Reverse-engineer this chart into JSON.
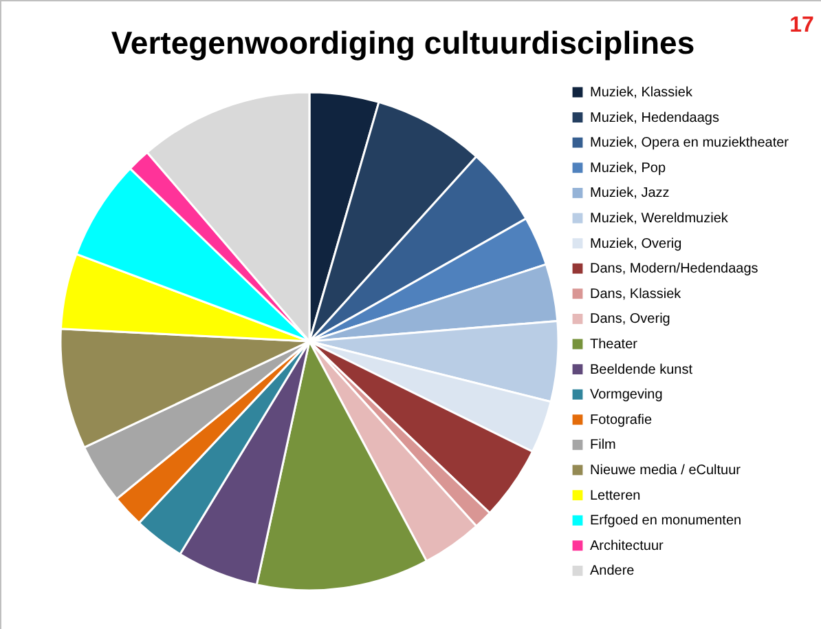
{
  "chart_data": {
    "type": "pie",
    "title": "Vertegenwoordiging cultuurdisciplines",
    "categories": [
      "Muziek, Klassiek",
      "Muziek, Hedendaags",
      "Muziek, Opera en muziektheater",
      "Muziek, Pop",
      "Muziek, Jazz",
      "Muziek, Wereldmuziek",
      "Muziek, Overig",
      "Dans, Modern/Hedendaags",
      "Dans, Klassiek",
      "Dans, Overig",
      "Theater",
      "Beeldende kunst",
      "Vormgeving",
      "Fotografie",
      "Film",
      "Nieuwe media / eCultuur",
      "Letteren",
      "Erfgoed en monumenten",
      "Architectuur",
      "Andere"
    ],
    "values": [
      4.5,
      7.2,
      5.1,
      3.2,
      3.7,
      5.2,
      3.4,
      4.8,
      1.2,
      3.9,
      11.2,
      5.3,
      3.3,
      2.1,
      3.9,
      7.8,
      4.9,
      6.5,
      1.5,
      11.3
    ],
    "colors": [
      "#10243f",
      "#243f60",
      "#365f91",
      "#4f81bd",
      "#95b3d7",
      "#b9cde5",
      "#dbe5f1",
      "#953735",
      "#d99694",
      "#e6b9b8",
      "#77933c",
      "#604a7b",
      "#31859c",
      "#e46c0a",
      "#a6a6a6",
      "#948a54",
      "#ffff00",
      "#00ffff",
      "#ff3399",
      "#d9d9d9"
    ],
    "legend": "right",
    "annotations": [
      "17"
    ]
  }
}
